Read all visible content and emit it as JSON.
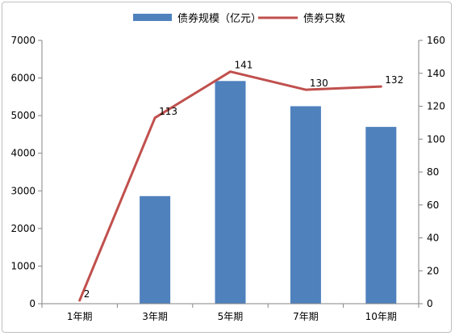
{
  "chart_data": {
    "type": "bar+line",
    "categories": [
      "1年期",
      "3年期",
      "5年期",
      "7年期",
      "10年期"
    ],
    "series": [
      {
        "name": "债券规模（亿元）",
        "type": "bar",
        "axis": "left",
        "color": "#4F81BD",
        "values": [
          0,
          2860,
          5920,
          5250,
          4700
        ]
      },
      {
        "name": "债券只数",
        "type": "line",
        "axis": "right",
        "color": "#C0504D",
        "values": [
          2,
          113,
          141,
          130,
          132
        ],
        "data_labels": [
          "2",
          "113",
          "141",
          "130",
          "132"
        ]
      }
    ],
    "y_left": {
      "min": 0,
      "max": 7000,
      "step": 1000,
      "ticks": [
        "0",
        "1000",
        "2000",
        "3000",
        "4000",
        "5000",
        "6000",
        "7000"
      ]
    },
    "y_right": {
      "min": 0,
      "max": 160,
      "step": 20,
      "ticks": [
        "0",
        "20",
        "40",
        "60",
        "80",
        "100",
        "120",
        "140",
        "160"
      ]
    },
    "legend": "top-center",
    "grid": false
  }
}
